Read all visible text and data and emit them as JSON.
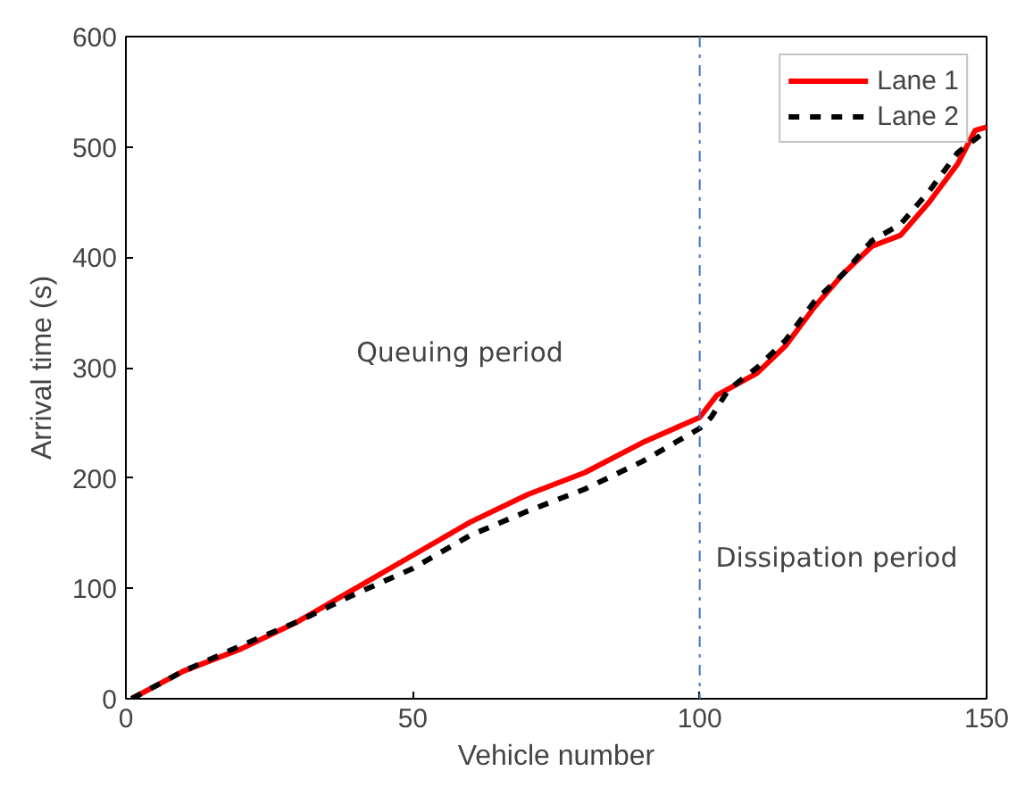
{
  "chart_data": {
    "type": "line",
    "xlabel": "Vehicle number",
    "ylabel": "Arrival time (s)",
    "xlim": [
      0,
      150
    ],
    "ylim": [
      0,
      600
    ],
    "xticks": [
      0,
      50,
      100,
      150
    ],
    "yticks": [
      0,
      100,
      200,
      300,
      400,
      500,
      600
    ],
    "legend": "top right",
    "grid": false,
    "series": [
      {
        "name": "Lane 1",
        "color": "#ff0000",
        "line_style": "solid",
        "x": [
          1,
          10,
          20,
          30,
          40,
          50,
          60,
          70,
          80,
          90,
          100,
          103,
          110,
          115,
          120,
          125,
          130,
          135,
          140,
          145,
          148,
          150
        ],
        "values": [
          0,
          25,
          45,
          70,
          100,
          130,
          160,
          185,
          205,
          232,
          255,
          275,
          295,
          320,
          355,
          385,
          410,
          420,
          450,
          485,
          515,
          518
        ]
      },
      {
        "name": "Lane 2",
        "color": "#000000",
        "line_style": "dashed",
        "x": [
          1,
          10,
          20,
          30,
          40,
          50,
          60,
          70,
          80,
          90,
          100,
          102,
          105,
          110,
          115,
          120,
          125,
          130,
          135,
          140,
          145,
          150
        ],
        "values": [
          0,
          25,
          48,
          70,
          95,
          118,
          148,
          170,
          190,
          215,
          245,
          255,
          280,
          300,
          325,
          360,
          385,
          415,
          430,
          460,
          495,
          515
        ]
      }
    ],
    "ref_lines": [
      {
        "axis": "x",
        "value": 100,
        "color": "#4472c4",
        "line_style": "dashdot"
      }
    ],
    "annotations": [
      "Queuing period",
      "Dissipation period"
    ]
  }
}
